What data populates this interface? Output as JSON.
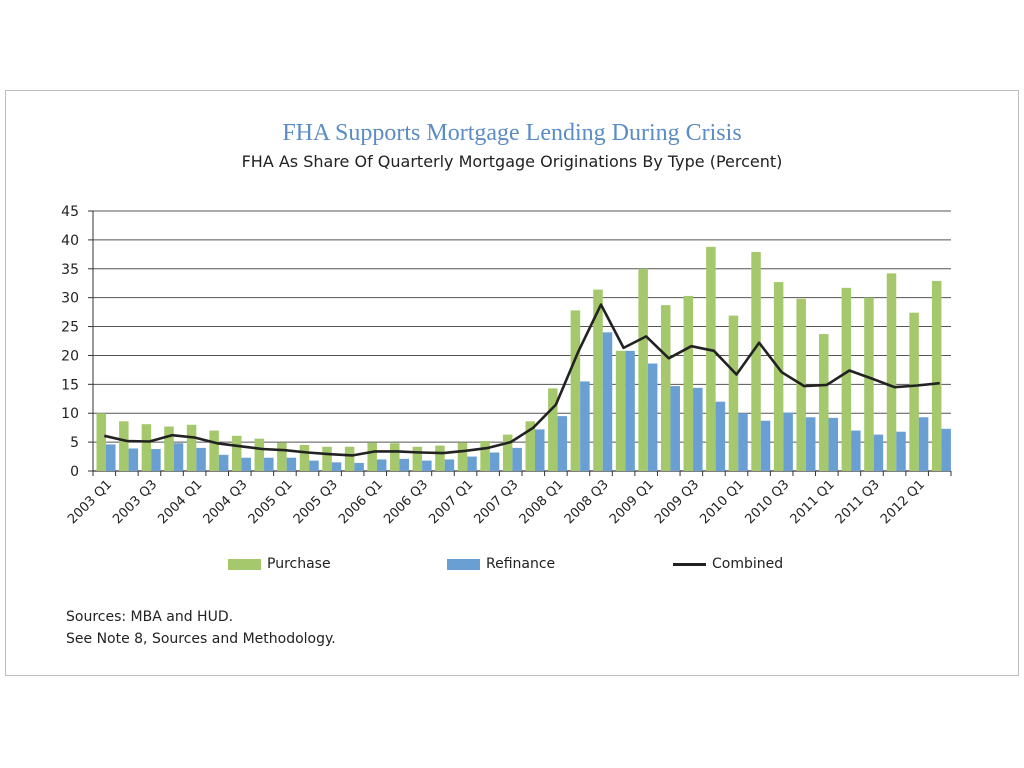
{
  "chart_data": {
    "type": "bar",
    "title": "FHA Supports Mortgage Lending During Crisis",
    "subtitle": "FHA As Share Of Quarterly Mortgage Originations By Type (Percent)",
    "ylim": [
      0,
      45
    ],
    "yticks": [
      0,
      5,
      10,
      15,
      20,
      25,
      30,
      35,
      40,
      45
    ],
    "grid": true,
    "legend_position": "bottom",
    "categories": [
      "2003 Q1",
      "2003 Q2",
      "2003 Q3",
      "2003 Q4",
      "2004 Q1",
      "2004 Q2",
      "2004 Q3",
      "2004 Q4",
      "2005 Q1",
      "2005 Q2",
      "2005 Q3",
      "2005 Q4",
      "2006 Q1",
      "2006 Q2",
      "2006 Q3",
      "2006 Q4",
      "2007 Q1",
      "2007 Q2",
      "2007 Q3",
      "2007 Q4",
      "2008 Q1",
      "2008 Q2",
      "2008 Q3",
      "2008 Q4",
      "2009 Q1",
      "2009 Q2",
      "2009 Q3",
      "2009 Q4",
      "2010 Q1",
      "2010 Q2",
      "2010 Q3",
      "2010 Q4",
      "2011 Q1",
      "2011 Q2",
      "2011 Q3",
      "2011 Q4",
      "2012 Q1",
      "2012 Q2"
    ],
    "tick_labels": [
      "2003 Q1",
      "2003 Q3",
      "2004 Q1",
      "2004 Q3",
      "2005 Q1",
      "2005 Q3",
      "2006 Q1",
      "2006 Q3",
      "2007 Q1",
      "2007 Q3",
      "2008 Q1",
      "2008 Q3",
      "2009 Q1",
      "2009 Q3",
      "2010 Q1",
      "2010 Q3",
      "2011 Q1",
      "2011 Q3",
      "2012 Q1"
    ],
    "series": [
      {
        "name": "Purchase",
        "kind": "bar",
        "color": "#a5c86c",
        "values": [
          10.0,
          8.6,
          8.1,
          7.7,
          8.0,
          7.0,
          6.1,
          5.6,
          4.9,
          4.5,
          4.2,
          4.2,
          4.9,
          4.8,
          4.2,
          4.4,
          4.9,
          5.2,
          6.3,
          8.6,
          14.3,
          27.8,
          31.4,
          20.8,
          35.0,
          28.7,
          30.3,
          38.8,
          26.9,
          37.9,
          32.7,
          29.8,
          23.7,
          31.7,
          30.0,
          34.2,
          27.4,
          32.9
        ]
      },
      {
        "name": "Refinance",
        "kind": "bar",
        "color": "#6a9fd4",
        "values": [
          4.6,
          3.9,
          3.8,
          4.8,
          4.0,
          2.8,
          2.3,
          2.3,
          2.3,
          1.8,
          1.5,
          1.4,
          2.0,
          2.1,
          1.8,
          2.0,
          2.5,
          3.2,
          4.0,
          7.2,
          9.5,
          15.5,
          24.0,
          20.8,
          18.6,
          14.7,
          14.4,
          12.0,
          10.0,
          8.7,
          10.1,
          9.3,
          9.2,
          7.0,
          6.3,
          6.8,
          9.3,
          7.3
        ]
      },
      {
        "name": "Combined",
        "kind": "line",
        "color": "#222222",
        "values": [
          6.1,
          5.2,
          5.1,
          6.2,
          5.8,
          4.8,
          4.3,
          3.8,
          3.6,
          3.2,
          2.9,
          2.7,
          3.4,
          3.4,
          3.2,
          3.1,
          3.5,
          4.0,
          5.0,
          7.5,
          11.5,
          20.7,
          28.8,
          21.3,
          23.3,
          19.5,
          21.6,
          20.8,
          16.7,
          22.2,
          17.1,
          14.7,
          14.9,
          17.4,
          16.0,
          14.5,
          14.8,
          15.2
        ]
      }
    ]
  },
  "legend": {
    "purchase": "Purchase",
    "refinance": "Refinance",
    "combined": "Combined"
  },
  "sources": {
    "line1": "Sources:  MBA and HUD.",
    "line2": "See Note 8, Sources and Methodology."
  }
}
